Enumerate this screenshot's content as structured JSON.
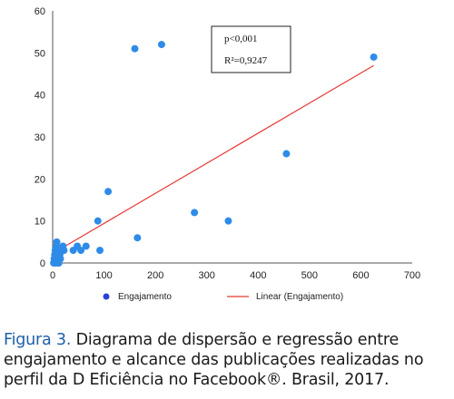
{
  "chart_data": {
    "type": "scatter",
    "title": "",
    "xlabel": "",
    "ylabel": "",
    "xlim": [
      0,
      700
    ],
    "ylim": [
      0,
      60
    ],
    "xticks": [
      0,
      100,
      200,
      300,
      400,
      500,
      600,
      700
    ],
    "yticks": [
      0,
      10,
      20,
      30,
      40,
      50,
      60
    ],
    "grid": false,
    "series": [
      {
        "name": "Engajamento",
        "kind": "scatter",
        "color": "#2f8be8",
        "x": [
          2,
          3,
          4,
          5,
          6,
          7,
          8,
          10,
          12,
          14,
          15,
          18,
          20,
          22,
          5,
          8,
          12,
          40,
          48,
          55,
          65,
          88,
          92,
          108,
          160,
          165,
          212,
          276,
          342,
          455,
          625
        ],
        "y": [
          0,
          1,
          2,
          3,
          1,
          4,
          5,
          0,
          1,
          2,
          1,
          3,
          4,
          3,
          0,
          2,
          0,
          3,
          4,
          3,
          4,
          10,
          3,
          17,
          51,
          6,
          52,
          12,
          10,
          26,
          49
        ]
      },
      {
        "name": "Linear (Engajamento)",
        "kind": "line",
        "color": "#e53935",
        "x": [
          2,
          625
        ],
        "y": [
          2.4,
          47
        ]
      }
    ],
    "annotation": {
      "p": "p<0,001",
      "r2": "R²=0,9247"
    },
    "legend": {
      "placement": "bottom",
      "series_label": "Engajamento",
      "fit_label": "Linear (Engajamento)"
    }
  },
  "caption": {
    "figure_label": "Figura 3.",
    "text": "Diagrama de dispersão e regressão entre engajamento e alcance das publicações realizadas no perfil da D Eficiência no Facebook®. Brasil, 2017."
  }
}
